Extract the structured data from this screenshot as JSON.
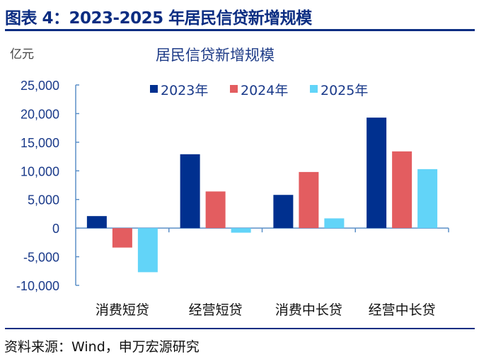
{
  "figure_title": "图表 4：2023-2025 年居民信贷新增规模",
  "source": "资料来源：Wind，申万宏源研究",
  "colors": {
    "title": "#0b2d82",
    "axis": "#5b8fc7",
    "2023年": "#00308f",
    "2024年": "#e35d60",
    "2025年": "#62d4f8"
  },
  "chart_data": {
    "type": "bar",
    "title": "居民信贷新增规模",
    "ylabel": "亿元",
    "xlabel": "",
    "ylim": [
      -10000,
      25000
    ],
    "yticks": [
      "25,000",
      "20,000",
      "15,000",
      "10,000",
      "5,000",
      "0",
      "-5,000",
      "-10,000"
    ],
    "ytick_values": [
      25000,
      20000,
      15000,
      10000,
      5000,
      0,
      -5000,
      -10000
    ],
    "categories": [
      "消费短贷",
      "经营短贷",
      "消费中长贷",
      "经营中长贷"
    ],
    "legend_position": "top",
    "grid": false,
    "series": [
      {
        "name": "2023年",
        "values": [
          2100,
          12900,
          5800,
          19300
        ]
      },
      {
        "name": "2024年",
        "values": [
          -3400,
          6400,
          9800,
          13400
        ]
      },
      {
        "name": "2025年",
        "values": [
          -7700,
          -800,
          1700,
          10300
        ]
      }
    ]
  }
}
